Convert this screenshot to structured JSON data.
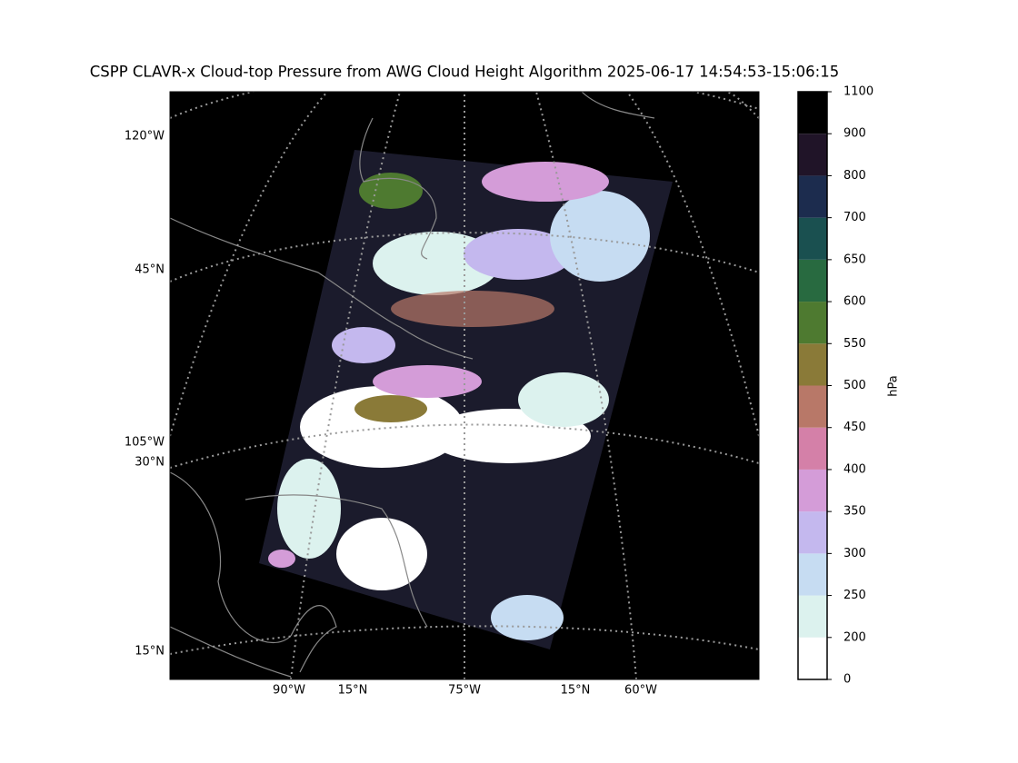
{
  "title": "CSPP CLAVR-x Cloud-top Pressure from AWG Cloud Height Algorithm 2025-06-17 14:54:53-15:06:15",
  "map": {
    "left_labels": [
      "120°W",
      "45°N",
      "105°W",
      "30°N",
      "15°N"
    ],
    "bottom_labels": [
      "90°W",
      "15°N",
      "75°W",
      "15°N",
      "60°W"
    ]
  },
  "colorbar": {
    "label": "hPa",
    "boundaries": [
      0,
      200,
      250,
      300,
      350,
      400,
      450,
      500,
      550,
      600,
      650,
      700,
      800,
      900,
      1100
    ],
    "colors": [
      "#ffffff",
      "#dcf2ee",
      "#c6dcf2",
      "#c4b8ee",
      "#d49cd8",
      "#d480a8",
      "#b87868",
      "#8a7a38",
      "#4e7a30",
      "#286a40",
      "#1a5050",
      "#1c2c4e",
      "#201428",
      "#000000"
    ]
  }
}
